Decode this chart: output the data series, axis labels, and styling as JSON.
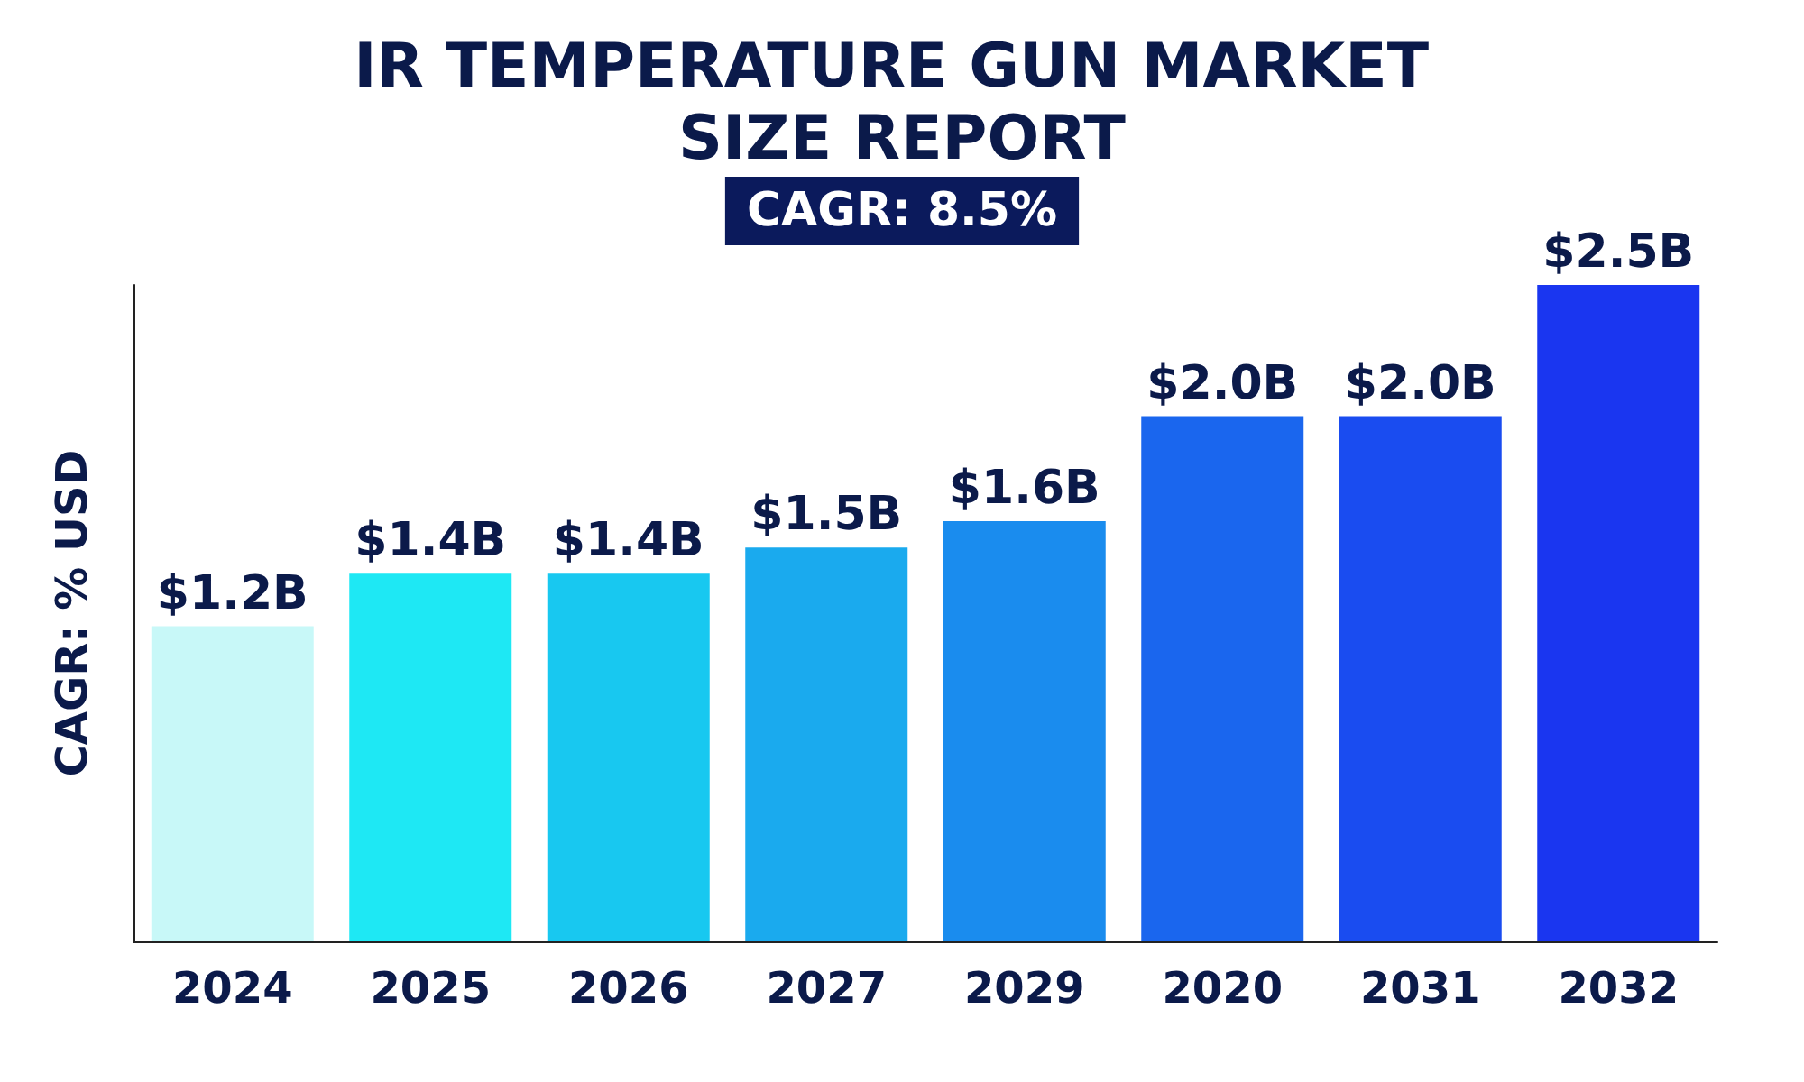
{
  "chart_data": {
    "type": "bar",
    "title": "IR TEMPERATURE GUN MARKET SIZE REPORT",
    "subtitle": "CAGR: 8.5%",
    "ylabel": "CAGR: % USD",
    "categories": [
      "2024",
      "2025",
      "2026",
      "2027",
      "2029",
      "2020",
      "2031",
      "2032"
    ],
    "values": [
      1.2,
      1.4,
      1.4,
      1.5,
      1.6,
      2.0,
      2.0,
      2.5
    ],
    "value_labels": [
      "$1.2B",
      "$1.4B",
      "$1.4B",
      "$1.5B",
      "$1.6B",
      "$2.0B",
      "$2.0B",
      "$2.5B"
    ],
    "colors": [
      "#c8f8f8",
      "#1ee8f4",
      "#18c8f0",
      "#1aaaee",
      "#1a8cee",
      "#1a66ee",
      "#1a4cf0",
      "#1a36f0"
    ],
    "tick_labels": "x"
  }
}
